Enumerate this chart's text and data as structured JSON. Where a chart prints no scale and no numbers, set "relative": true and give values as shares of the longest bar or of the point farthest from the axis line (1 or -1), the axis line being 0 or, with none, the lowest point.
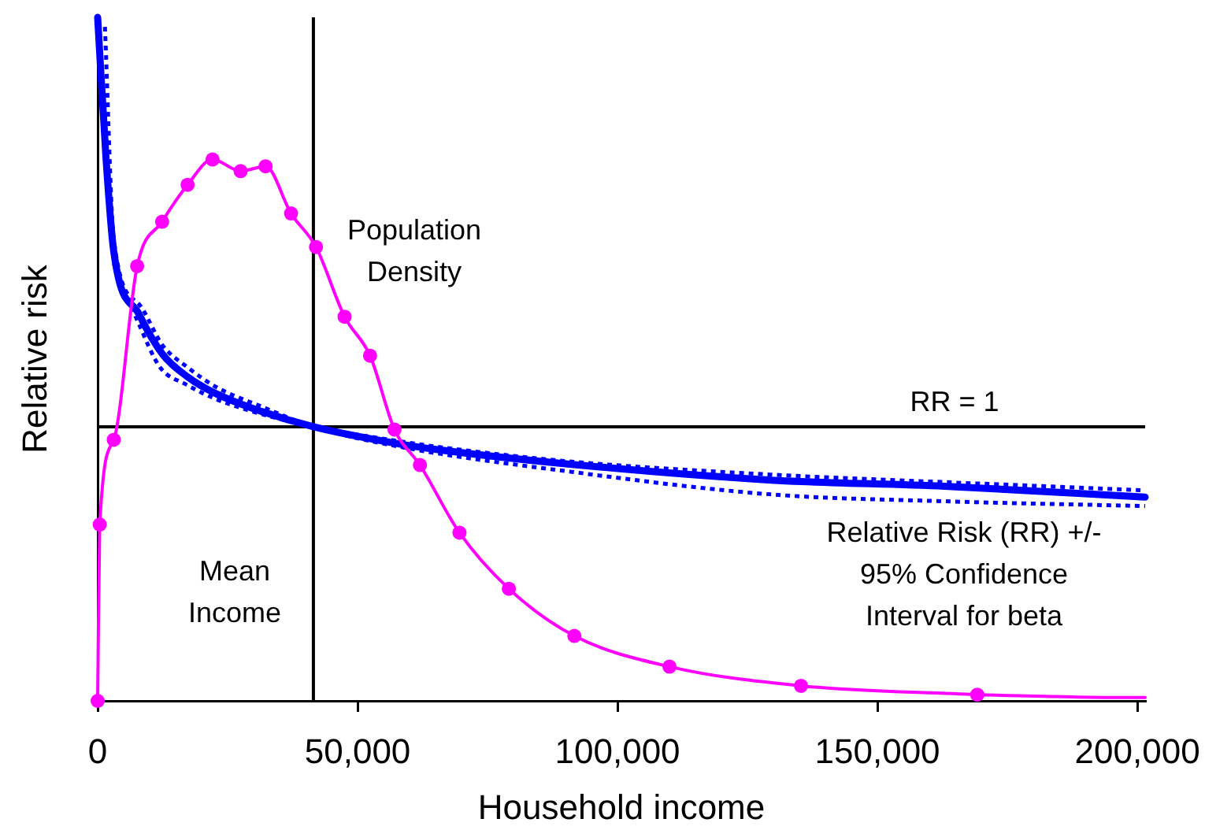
{
  "chart_data": {
    "type": "line",
    "xlabel": "Household income",
    "ylabel": "Relative risk",
    "relative": true,
    "xlim": [
      0,
      201500
    ],
    "xticks": [
      0,
      {
        "value": 50000,
        "label": "50,000"
      },
      {
        "value": 100000,
        "label": "100,000"
      },
      {
        "value": 150000,
        "label": "150,000"
      },
      {
        "value": 200000,
        "label": "200,000"
      }
    ],
    "grid": false,
    "legend": false,
    "series": [
      {
        "name": "Population Density",
        "color": "#ff00ff",
        "marker": "circle",
        "line_style": "solid",
        "x": [
          0,
          400,
          3100,
          7600,
          12400,
          17300,
          22100,
          27500,
          32300,
          37200,
          42000,
          47500,
          52400,
          57100,
          62000,
          69600,
          79100,
          91700,
          110000,
          135300,
          169200
        ],
        "values": [
          0,
          0.258,
          0.382,
          0.636,
          0.701,
          0.755,
          0.792,
          0.775,
          0.782,
          0.713,
          0.664,
          0.562,
          0.505,
          0.397,
          0.345,
          0.246,
          0.164,
          0.095,
          0.05,
          0.022,
          0.009
        ]
      },
      {
        "color": "#ff00ff",
        "marker": "none",
        "line_style": "solid",
        "x": [
          169200,
          180500,
          193800,
          201500
        ],
        "values": [
          0.009,
          0.007,
          0.005,
          0.005
        ]
      },
      {
        "name": "Relative Risk (RR) +/- 95% Confidence Interval for beta",
        "color": "#0000ff",
        "marker": "none",
        "line_style": "solid",
        "x": [
          0,
          1600,
          3100,
          8000,
          12500,
          17300,
          22600,
          31700,
          41500,
          57900,
          66000,
          91200,
          129600,
          162900,
          201500
        ],
        "values": [
          1,
          0.795,
          0.657,
          0.565,
          0.507,
          0.474,
          0.45,
          0.423,
          0.401,
          0.376,
          0.367,
          0.346,
          0.323,
          0.314,
          0.298
        ]
      },
      {
        "color": "#0000ff",
        "marker": "none",
        "line_style": "dotted",
        "x": [
          1400,
          3100,
          8000,
          12500,
          17300,
          22600,
          31700,
          41500,
          57900,
          91200,
          129600,
          162900,
          201500
        ],
        "values": [
          0.986,
          0.675,
          0.58,
          0.52,
          0.488,
          0.46,
          0.43,
          0.401,
          0.372,
          0.335,
          0.302,
          0.292,
          0.285
        ]
      },
      {
        "color": "#0000ff",
        "marker": "none",
        "line_style": "dotted",
        "x": [
          3100,
          8000,
          12000,
          17000,
          22600,
          28200,
          32700,
          41500,
          57900,
          66000,
          91200,
          129600,
          162900,
          201500
        ],
        "values": [
          0.64,
          0.55,
          0.488,
          0.463,
          0.442,
          0.427,
          0.417,
          0.401,
          0.38,
          0.371,
          0.35,
          0.331,
          0.32,
          0.308
        ]
      }
    ],
    "ref_lines": [
      {
        "axis": "x",
        "value": 41500,
        "label": "Mean Income",
        "color": "#000000"
      },
      {
        "axis": "y",
        "value": 0.401,
        "color": "#000000"
      }
    ],
    "annotations": [
      "RR = 1"
    ]
  }
}
